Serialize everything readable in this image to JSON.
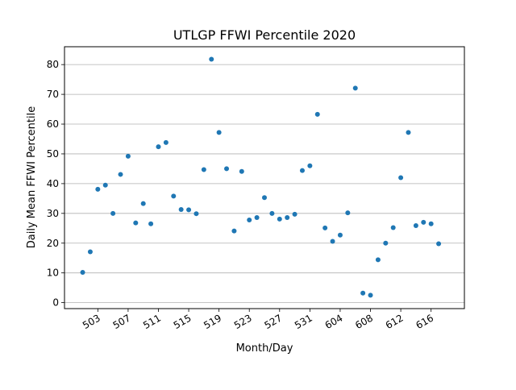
{
  "chart_data": {
    "type": "scatter",
    "title": "UTLGP FFWI Percentile 2020",
    "xlabel": "Month/Day",
    "ylabel": "Daily Mean FFWI Percentile",
    "x_tick_labels": [
      "503",
      "507",
      "511",
      "515",
      "519",
      "523",
      "527",
      "531",
      "604",
      "608",
      "612",
      "616"
    ],
    "ylim": [
      -2,
      86
    ],
    "y_ticks": [
      0,
      10,
      20,
      30,
      40,
      50,
      60,
      70,
      80
    ],
    "grid": "horizontal",
    "marker_color": "#1f77b4",
    "series": [
      {
        "x": [
          "2020-05-01",
          "2020-05-02",
          "2020-05-03",
          "2020-05-04",
          "2020-05-05",
          "2020-05-06",
          "2020-05-07",
          "2020-05-08",
          "2020-05-09",
          "2020-05-10",
          "2020-05-11",
          "2020-05-12",
          "2020-05-13",
          "2020-05-14",
          "2020-05-15",
          "2020-05-16",
          "2020-05-17",
          "2020-05-18",
          "2020-05-19",
          "2020-05-20",
          "2020-05-21",
          "2020-05-22",
          "2020-05-23",
          "2020-05-24",
          "2020-05-25",
          "2020-05-26",
          "2020-05-27",
          "2020-05-28",
          "2020-05-29",
          "2020-05-30",
          "2020-05-31",
          "2020-06-01",
          "2020-06-02",
          "2020-06-03",
          "2020-06-04",
          "2020-06-05",
          "2020-06-06",
          "2020-06-07",
          "2020-06-08",
          "2020-06-09",
          "2020-06-10",
          "2020-06-11",
          "2020-06-12",
          "2020-06-13",
          "2020-06-14",
          "2020-06-15",
          "2020-06-16",
          "2020-06-17",
          "2020-06-18"
        ],
        "y": [
          10.2,
          17.1,
          38.1,
          39.5,
          30.0,
          43.1,
          49.2,
          26.8,
          33.3,
          26.5,
          52.4,
          53.8,
          35.8,
          31.3,
          31.2,
          29.9,
          44.7,
          81.8,
          57.2,
          45.0,
          24.1,
          44.1,
          27.8,
          28.6,
          35.3,
          30.0,
          28.1,
          28.6,
          29.7,
          44.4,
          46.0,
          63.3,
          25.1,
          20.6,
          22.7,
          30.2,
          72.1,
          3.2,
          2.5,
          14.4,
          20.0,
          25.2,
          42.0,
          57.2,
          25.9,
          27.0,
          26.5,
          19.8,
          null
        ]
      }
    ]
  }
}
